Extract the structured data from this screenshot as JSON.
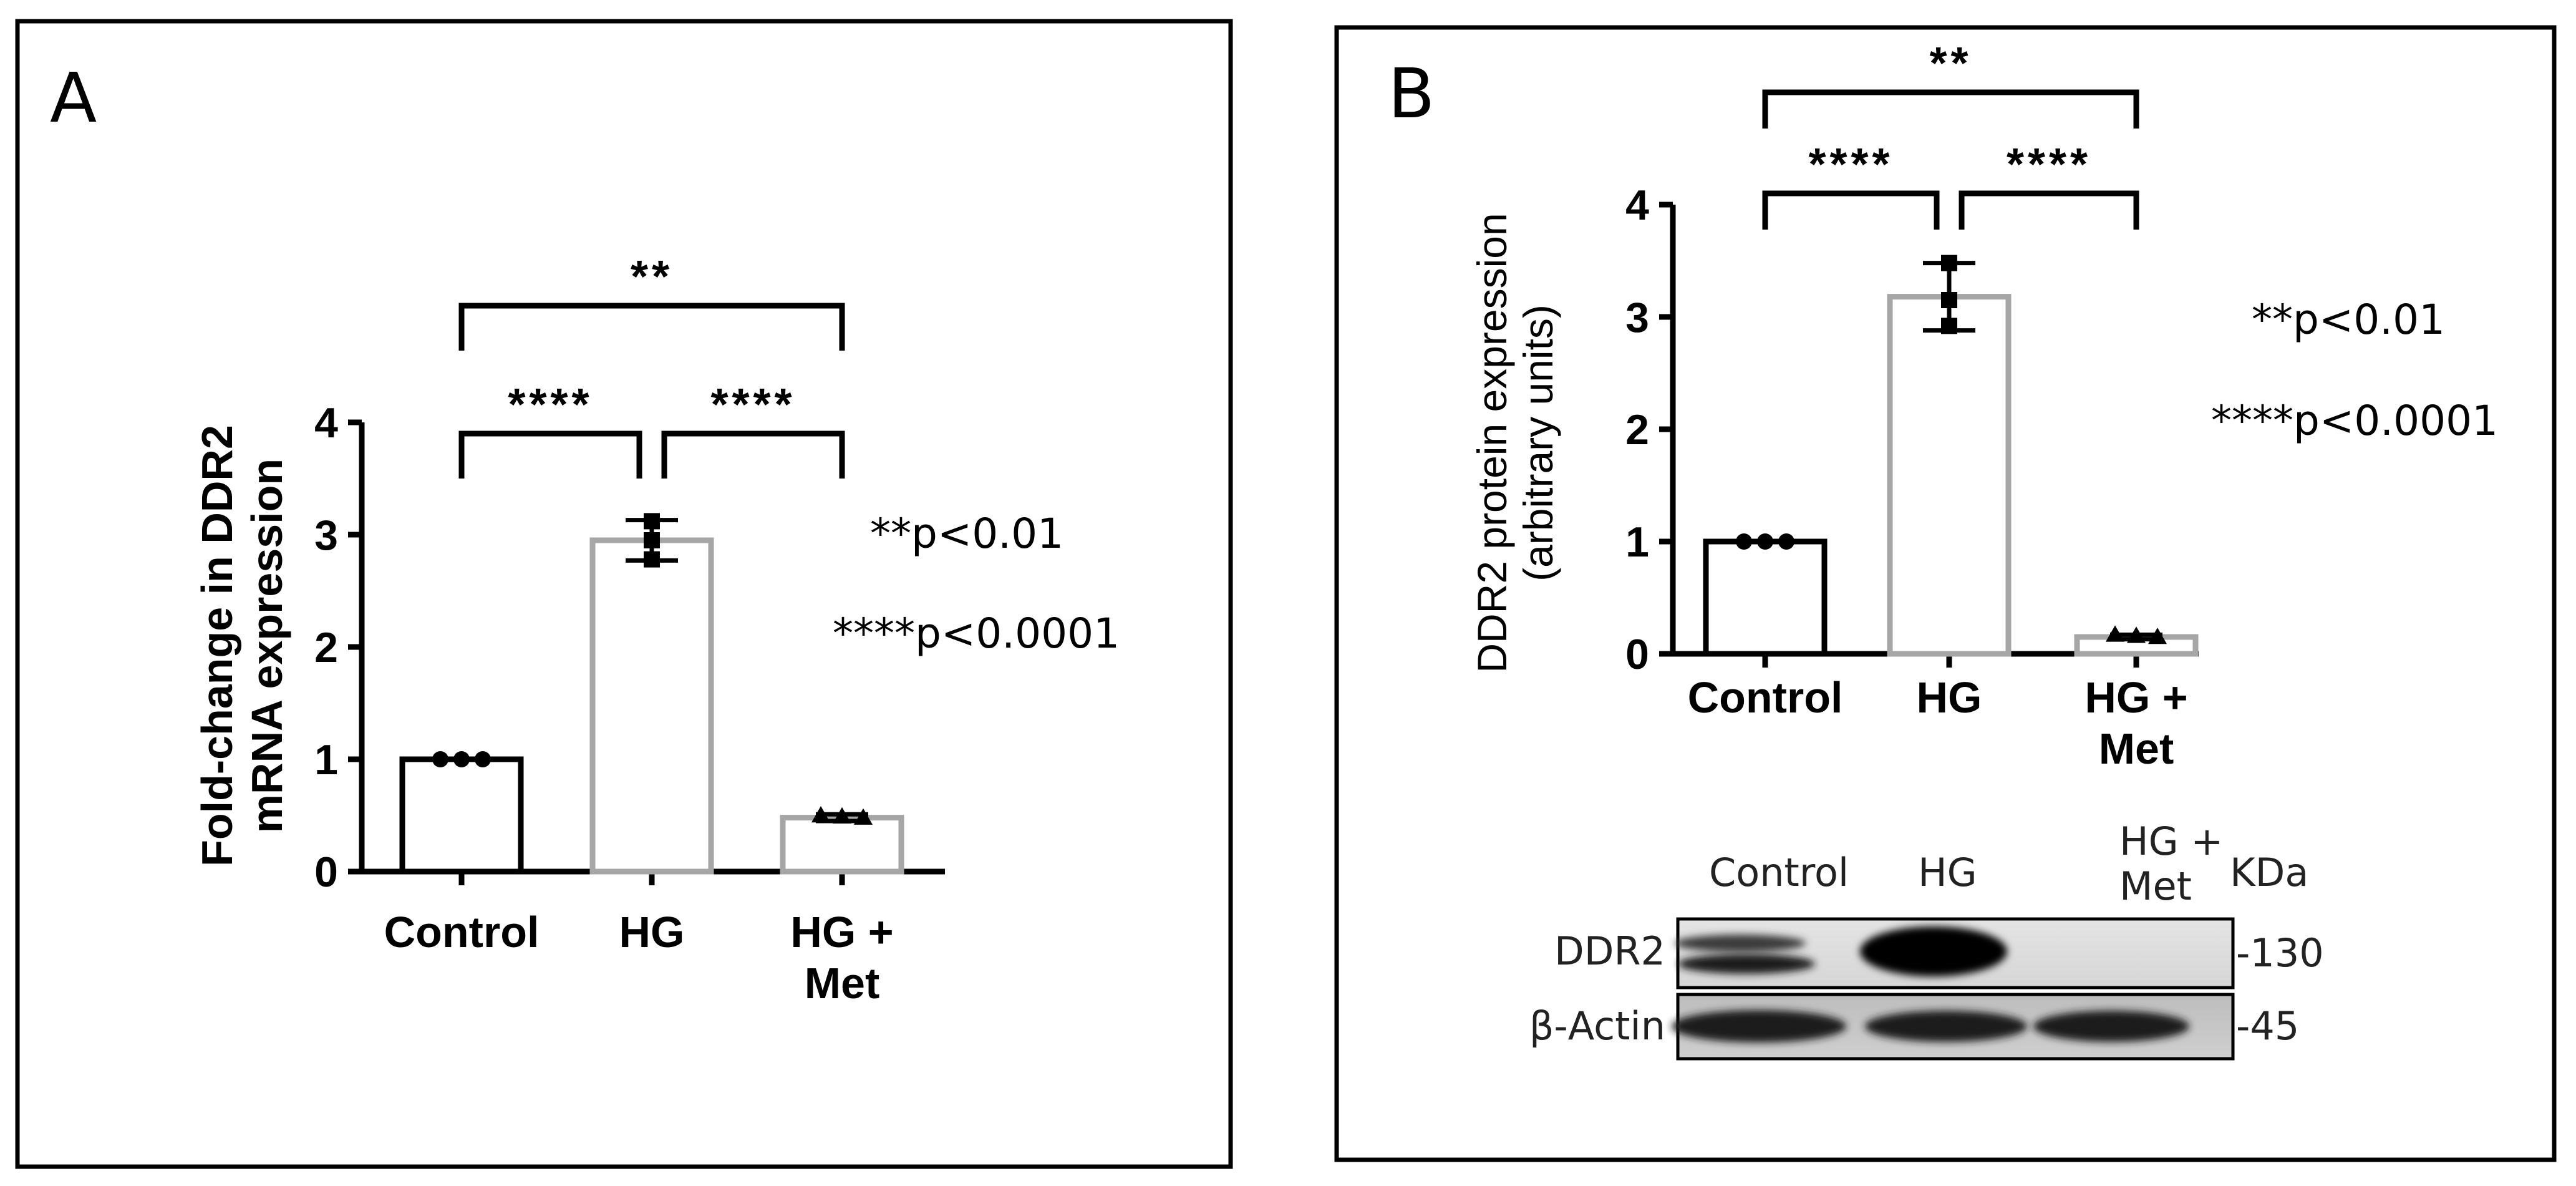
{
  "panels": {
    "A": {
      "letter": "A"
    },
    "B": {
      "letter": "B"
    }
  },
  "chart_data": [
    {
      "panel": "A",
      "type": "bar",
      "categories": [
        "Control",
        "HG",
        "HG +\nMet"
      ],
      "values": [
        1.0,
        2.95,
        0.48
      ],
      "error": [
        0.0,
        0.18,
        0.03
      ],
      "points": [
        [
          1.0,
          1.0,
          1.0
        ],
        [
          3.12,
          2.95,
          2.78
        ],
        [
          0.5,
          0.49,
          0.48
        ]
      ],
      "bar_colors": [
        "#000000",
        "#a6a6a6",
        "#a6a6a6"
      ],
      "ylabel": "Fold-change in DDR2\nmRNA expression",
      "xlabel": "",
      "ylim": [
        0,
        4
      ],
      "yticks": [
        0,
        1,
        2,
        3,
        4
      ],
      "significance": [
        {
          "from": 0,
          "to": 1,
          "label": "****"
        },
        {
          "from": 1,
          "to": 2,
          "label": "****"
        },
        {
          "from": 0,
          "to": 2,
          "label": "**"
        }
      ],
      "notes": [
        "**p<0.01",
        "****p<0.0001"
      ]
    },
    {
      "panel": "B",
      "type": "bar",
      "categories": [
        "Control",
        "HG",
        "HG +\nMet"
      ],
      "values": [
        1.0,
        3.18,
        0.15
      ],
      "error": [
        0.0,
        0.3,
        0.02
      ],
      "points": [
        [
          1.0,
          1.0,
          1.0
        ],
        [
          3.48,
          3.15,
          2.92
        ],
        [
          0.17,
          0.16,
          0.15
        ]
      ],
      "bar_colors": [
        "#000000",
        "#a6a6a6",
        "#a6a6a6"
      ],
      "ylabel": "DDR2 protein expression\n(arbitrary units)",
      "xlabel": "",
      "ylim": [
        0,
        4
      ],
      "yticks": [
        0,
        1,
        2,
        3,
        4
      ],
      "significance": [
        {
          "from": 0,
          "to": 1,
          "label": "****"
        },
        {
          "from": 1,
          "to": 2,
          "label": "****"
        },
        {
          "from": 0,
          "to": 2,
          "label": "**"
        }
      ],
      "notes": [
        "**p<0.01",
        "****p<0.0001"
      ]
    }
  ],
  "blot": {
    "lane_labels": [
      "Control",
      "HG",
      "HG +\nMet"
    ],
    "unit_label": "KDa",
    "rows": [
      {
        "label": "DDR2",
        "marker": "-130"
      },
      {
        "label": "β-Actin",
        "marker": "-45"
      }
    ]
  }
}
